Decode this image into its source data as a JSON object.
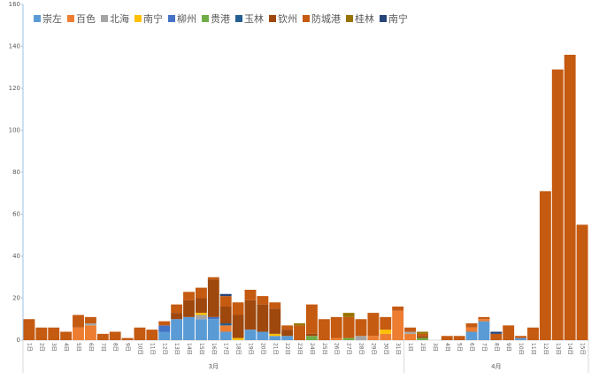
{
  "chart_data": {
    "type": "stacked-bar",
    "categories": [
      "1日",
      "2日",
      "3日",
      "4日",
      "5日",
      "6日",
      "7日",
      "8日",
      "9日",
      "10日",
      "11日",
      "12日",
      "13日",
      "14日",
      "15日",
      "16日",
      "17日",
      "18日",
      "19日",
      "20日",
      "21日",
      "22日",
      "23日",
      "24日",
      "25日",
      "26日",
      "27日",
      "28日",
      "29日",
      "30日",
      "31日",
      "1日",
      "2日",
      "3日",
      "4日",
      "5日",
      "6日",
      "7日",
      "8日",
      "9日",
      "10日",
      "11日",
      "12日",
      "13日",
      "14日",
      "15日"
    ],
    "x_groups": [
      "3月",
      "4月"
    ],
    "ylim": [
      0,
      160
    ],
    "yticks": [
      0,
      20,
      40,
      60,
      80,
      100,
      120,
      140,
      160
    ],
    "series": [
      {
        "name": "崇左",
        "color": "#5b9bd5",
        "values": [
          0,
          0,
          0,
          0,
          0,
          0,
          0,
          0,
          0,
          0,
          0,
          4,
          10,
          11,
          10,
          10,
          4,
          0,
          5,
          4,
          2,
          2,
          0,
          0,
          0,
          0,
          0,
          0,
          0,
          0,
          0,
          0,
          0,
          0,
          0,
          0,
          4,
          9,
          0,
          0,
          1,
          0,
          0,
          0,
          0,
          0
        ]
      },
      {
        "name": "百色",
        "color": "#ed7d31",
        "values": [
          0,
          0,
          0,
          0,
          6,
          7,
          0,
          0,
          0,
          0,
          0,
          0,
          0,
          0,
          0,
          0,
          3,
          0,
          0,
          0,
          0,
          0,
          0,
          0,
          0,
          1,
          0,
          0,
          2,
          3,
          14,
          3,
          0,
          0,
          0,
          0,
          2,
          1,
          0,
          0,
          0,
          0,
          0,
          0,
          0,
          0
        ]
      },
      {
        "name": "北海",
        "color": "#a5a5a5",
        "values": [
          0,
          0,
          0,
          0,
          0,
          1,
          0,
          0,
          0,
          0,
          0,
          0,
          0,
          0,
          2,
          0,
          0,
          0,
          0,
          0,
          0,
          0,
          0,
          0,
          0,
          0,
          0,
          2,
          0,
          0,
          0,
          1,
          0,
          0,
          0,
          0,
          0,
          0,
          0,
          0,
          0,
          0,
          0,
          0,
          0,
          0
        ]
      },
      {
        "name": "南宁",
        "color": "#ffc000",
        "values": [
          0,
          0,
          0,
          0,
          0,
          0,
          0,
          0,
          0,
          0,
          0,
          0,
          0,
          0,
          1,
          0,
          0,
          1,
          0,
          0,
          1,
          0,
          0,
          0,
          0,
          0,
          0,
          0,
          0,
          2,
          0,
          0,
          0,
          0,
          0,
          0,
          0,
          0,
          0,
          0,
          0,
          0,
          0,
          0,
          0,
          0
        ]
      },
      {
        "name": "柳州",
        "color": "#4472c4",
        "values": [
          0,
          0,
          0,
          0,
          0,
          0,
          0,
          0,
          0,
          0,
          0,
          3,
          0,
          0,
          0,
          1,
          0,
          0,
          0,
          0,
          0,
          0,
          0,
          0,
          0,
          0,
          0,
          0,
          0,
          0,
          0,
          0,
          0,
          0,
          0,
          0,
          0,
          0,
          0,
          0,
          0,
          0,
          0,
          0,
          0,
          0
        ]
      },
      {
        "name": "贵港",
        "color": "#70ad47",
        "values": [
          0,
          0,
          0,
          0,
          0,
          0,
          0,
          0,
          0,
          0,
          0,
          0,
          0,
          0,
          0,
          0,
          0,
          0,
          0,
          0,
          0,
          0,
          0,
          2,
          0,
          0,
          1,
          0,
          0,
          0,
          0,
          0,
          1,
          0,
          0,
          0,
          0,
          0,
          0,
          0,
          0,
          0,
          0,
          0,
          0,
          0
        ]
      },
      {
        "name": "玉林",
        "color": "#255e91",
        "values": [
          0,
          0,
          0,
          0,
          0,
          0,
          0,
          0,
          0,
          0,
          0,
          0,
          0,
          0,
          0,
          0,
          1,
          0,
          0,
          0,
          0,
          0,
          0,
          0,
          0,
          0,
          0,
          0,
          0,
          0,
          0,
          0,
          0,
          0,
          0,
          0,
          0,
          0,
          0,
          0,
          0,
          0,
          0,
          0,
          0,
          0
        ]
      },
      {
        "name": "钦州",
        "color": "#9e480e",
        "values": [
          0,
          0,
          0,
          0,
          0,
          0,
          0,
          0,
          0,
          0,
          0,
          0,
          3,
          8,
          7,
          18,
          8,
          11,
          14,
          13,
          12,
          3,
          0,
          1,
          0,
          0,
          0,
          0,
          0,
          0,
          0,
          0,
          1,
          0,
          0,
          0,
          0,
          0,
          0,
          0,
          0,
          0,
          0,
          0,
          0,
          0
        ]
      },
      {
        "name": "防城港",
        "color": "#c55a11",
        "values": [
          10,
          6,
          6,
          4,
          6,
          3,
          3,
          4,
          1,
          6,
          5,
          2,
          4,
          4,
          5,
          1,
          5,
          6,
          5,
          4,
          3,
          2,
          7,
          14,
          10,
          10,
          10,
          8,
          11,
          6,
          2,
          2,
          1,
          0,
          2,
          2,
          2,
          1,
          3,
          7,
          1,
          6,
          71,
          129,
          136,
          55
        ]
      },
      {
        "name": "桂林",
        "color": "#997300",
        "values": [
          0,
          0,
          0,
          0,
          0,
          0,
          0,
          0,
          0,
          0,
          0,
          0,
          0,
          0,
          0,
          0,
          0,
          0,
          0,
          0,
          0,
          0,
          1,
          0,
          0,
          0,
          2,
          0,
          0,
          0,
          0,
          0,
          1,
          0,
          0,
          0,
          0,
          0,
          0,
          0,
          0,
          0,
          0,
          0,
          0,
          0
        ]
      },
      {
        "name": "南宁",
        "color": "#264478",
        "values": [
          0,
          0,
          0,
          0,
          0,
          0,
          0,
          0,
          0,
          0,
          0,
          0,
          0,
          0,
          0,
          0,
          1,
          0,
          0,
          0,
          0,
          0,
          0,
          0,
          0,
          0,
          0,
          0,
          0,
          0,
          0,
          0,
          0,
          0,
          0,
          0,
          0,
          0,
          1,
          0,
          0,
          0,
          0,
          0,
          0,
          0
        ]
      }
    ]
  }
}
